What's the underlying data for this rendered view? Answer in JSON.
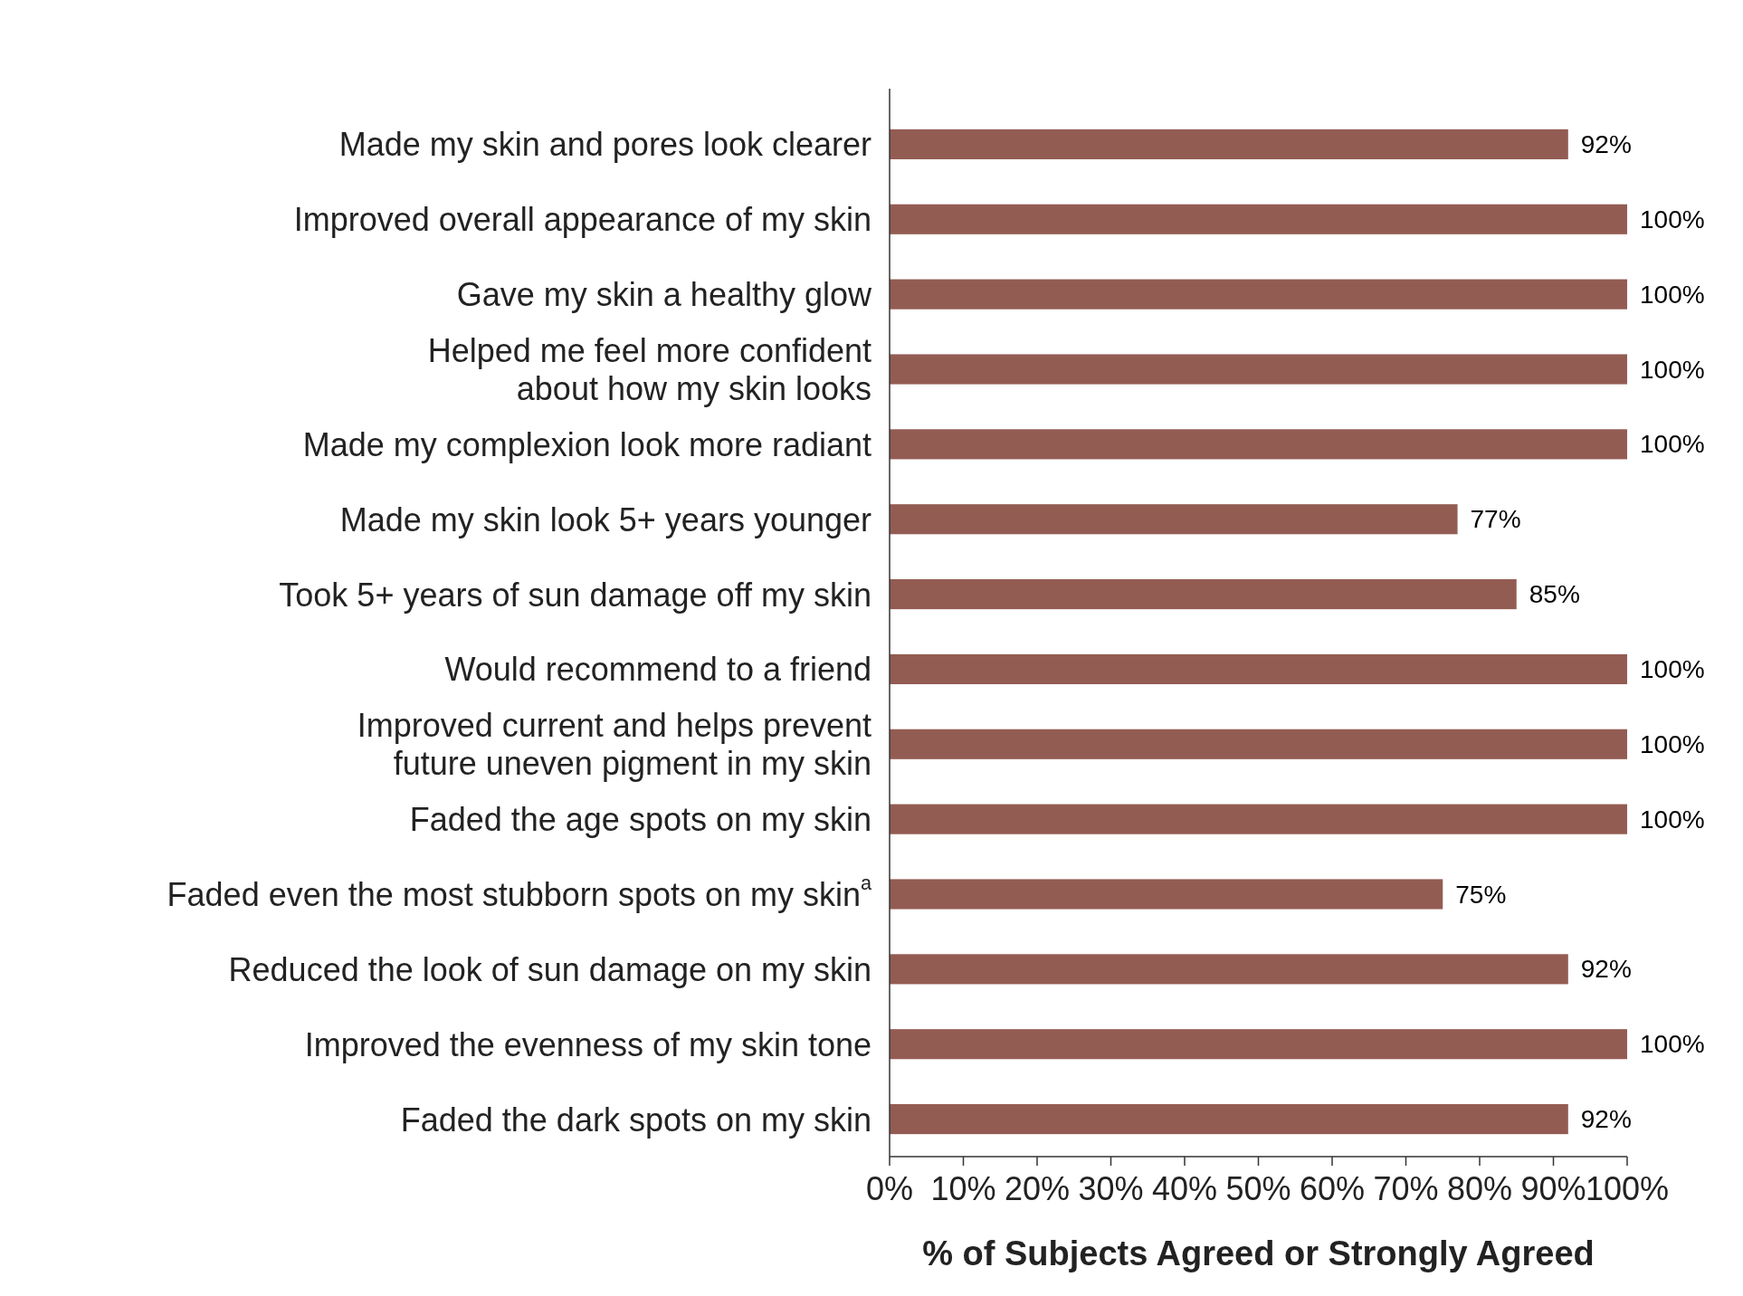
{
  "chart_data": {
    "type": "bar",
    "orientation": "horizontal",
    "xlabel": "% of Subjects Agreed or Strongly Agreed",
    "categories": [
      "Made my skin and pores look clearer",
      "Improved overall appearance of my skin",
      "Gave my skin a healthy glow",
      "Helped me feel more confident about how my skin looks",
      "Made my complexion look more radiant",
      "Made my skin look 5+ years younger",
      "Took 5+ years of sun damage off my skin",
      "Would recommend to a friend",
      "Improved current and helps prevent future uneven pigment in my skin",
      "Faded the age spots on my skin",
      "Faded even the most stubborn spots on my skin$^{a}$",
      "Reduced the look of sun damage on my skin",
      "Improved the evenness of my skin tone",
      "Faded the dark spots on my skin"
    ],
    "values": [
      92,
      100,
      100,
      100,
      100,
      77,
      85,
      100,
      100,
      100,
      75,
      92,
      100,
      92
    ],
    "value_labels": [
      "92%",
      "100%",
      "100%",
      "100%",
      "100%",
      "77%",
      "85%",
      "100%",
      "100%",
      "100%",
      "75%",
      "92%",
      "100%",
      "92%"
    ],
    "color": "#935c53",
    "grid": false,
    "xlim": [
      0,
      100
    ],
    "xticks": [
      {
        "value": 0,
        "label": "0%"
      },
      {
        "value": 10,
        "label": "10%"
      },
      {
        "value": 20,
        "label": "20%"
      },
      {
        "value": 30,
        "label": "30%"
      },
      {
        "value": 40,
        "label": "40%"
      },
      {
        "value": 50,
        "label": "50%"
      },
      {
        "value": 60,
        "label": "60%"
      },
      {
        "value": 70,
        "label": "70%"
      },
      {
        "value": 80,
        "label": "80%"
      },
      {
        "value": 90,
        "label": "90%"
      },
      {
        "value": 100,
        "label": "100%"
      }
    ]
  }
}
